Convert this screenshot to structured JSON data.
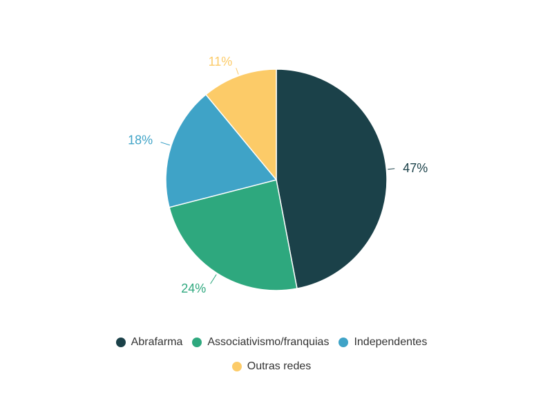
{
  "chart_data": {
    "type": "pie",
    "title": "",
    "categories": [
      "Abrafarma",
      "Associativismo/franquias",
      "Independentes",
      "Outras redes"
    ],
    "values": [
      47,
      24,
      18,
      11
    ],
    "labels": [
      "47%",
      "24%",
      "18%",
      "11%"
    ],
    "colors": [
      "#1b4149",
      "#2ea87e",
      "#3fa3c7",
      "#fccb68"
    ],
    "start_angle": "12 o'clock",
    "direction": "clockwise",
    "legend_position": "bottom"
  },
  "legend": {
    "items": [
      {
        "label": "Abrafarma",
        "color": "#1b4149"
      },
      {
        "label": "Associativismo/franquias",
        "color": "#2ea87e"
      },
      {
        "label": "Independentes",
        "color": "#3fa3c7"
      },
      {
        "label": "Outras redes",
        "color": "#fccb68"
      }
    ]
  }
}
